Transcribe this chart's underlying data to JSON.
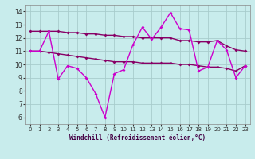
{
  "x": [
    0,
    1,
    2,
    3,
    4,
    5,
    6,
    7,
    8,
    9,
    10,
    11,
    12,
    13,
    14,
    15,
    16,
    17,
    18,
    19,
    20,
    21,
    22,
    23
  ],
  "y_main": [
    11.0,
    11.0,
    12.5,
    8.9,
    9.9,
    9.7,
    9.0,
    7.8,
    6.0,
    9.3,
    9.6,
    11.5,
    12.8,
    11.9,
    12.8,
    13.9,
    12.7,
    12.6,
    9.5,
    9.8,
    11.8,
    11.1,
    9.0,
    9.9
  ],
  "y_upper": [
    12.5,
    12.5,
    12.5,
    12.5,
    12.4,
    12.4,
    12.3,
    12.3,
    12.2,
    12.2,
    12.1,
    12.1,
    12.0,
    12.0,
    12.0,
    12.0,
    11.8,
    11.8,
    11.7,
    11.7,
    11.8,
    11.4,
    11.1,
    11.0
  ],
  "y_lower": [
    11.0,
    11.0,
    10.9,
    10.8,
    10.7,
    10.6,
    10.5,
    10.4,
    10.3,
    10.2,
    10.2,
    10.2,
    10.1,
    10.1,
    10.1,
    10.1,
    10.0,
    10.0,
    9.9,
    9.8,
    9.8,
    9.7,
    9.5,
    9.9
  ],
  "color_main": "#cc00cc",
  "color_upper": "#880066",
  "color_lower": "#880066",
  "bg_color": "#c8ecec",
  "grid_color": "#a8cccc",
  "xlabel": "Windchill (Refroidissement éolien,°C)",
  "xlim": [
    -0.5,
    23.5
  ],
  "ylim": [
    5.5,
    14.5
  ],
  "yticks": [
    6,
    7,
    8,
    9,
    10,
    11,
    12,
    13,
    14
  ],
  "xticks": [
    0,
    1,
    2,
    3,
    4,
    5,
    6,
    7,
    8,
    9,
    10,
    11,
    12,
    13,
    14,
    15,
    16,
    17,
    18,
    19,
    20,
    21,
    22,
    23
  ]
}
